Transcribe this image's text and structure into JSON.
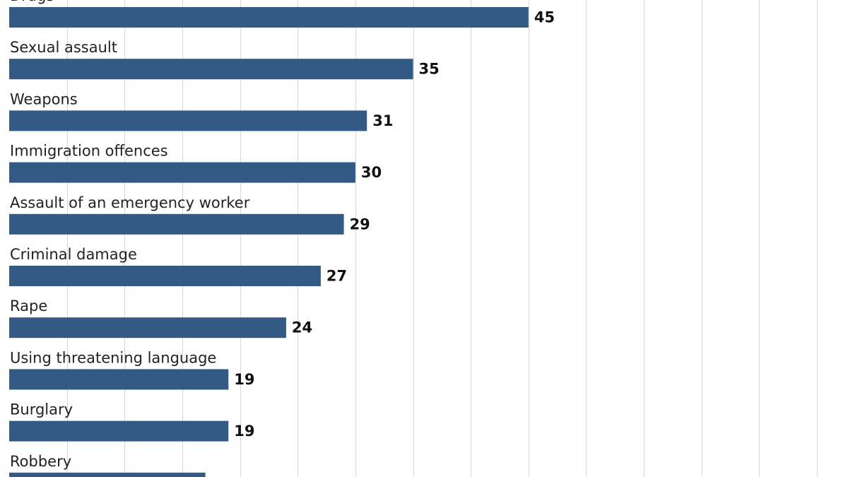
{
  "colors": {
    "bar": "#335a85",
    "grid": "#d6d6d6",
    "label": "#222222",
    "value": "#111111"
  },
  "chart_data": {
    "type": "bar",
    "orientation": "horizontal",
    "categories": [
      "Drugs",
      "Sexual assault",
      "Weapons",
      "Immigration offences",
      "Assault of an emergency worker",
      "Criminal damage",
      "Rape",
      "Using threatening language",
      "Burglary",
      "Robbery"
    ],
    "values": [
      45,
      35,
      31,
      30,
      29,
      27,
      24,
      19,
      19,
      17
    ],
    "title": "",
    "xlabel": "",
    "ylabel": "",
    "xlim": [
      0,
      70
    ],
    "grid": true,
    "data_labels": true
  }
}
